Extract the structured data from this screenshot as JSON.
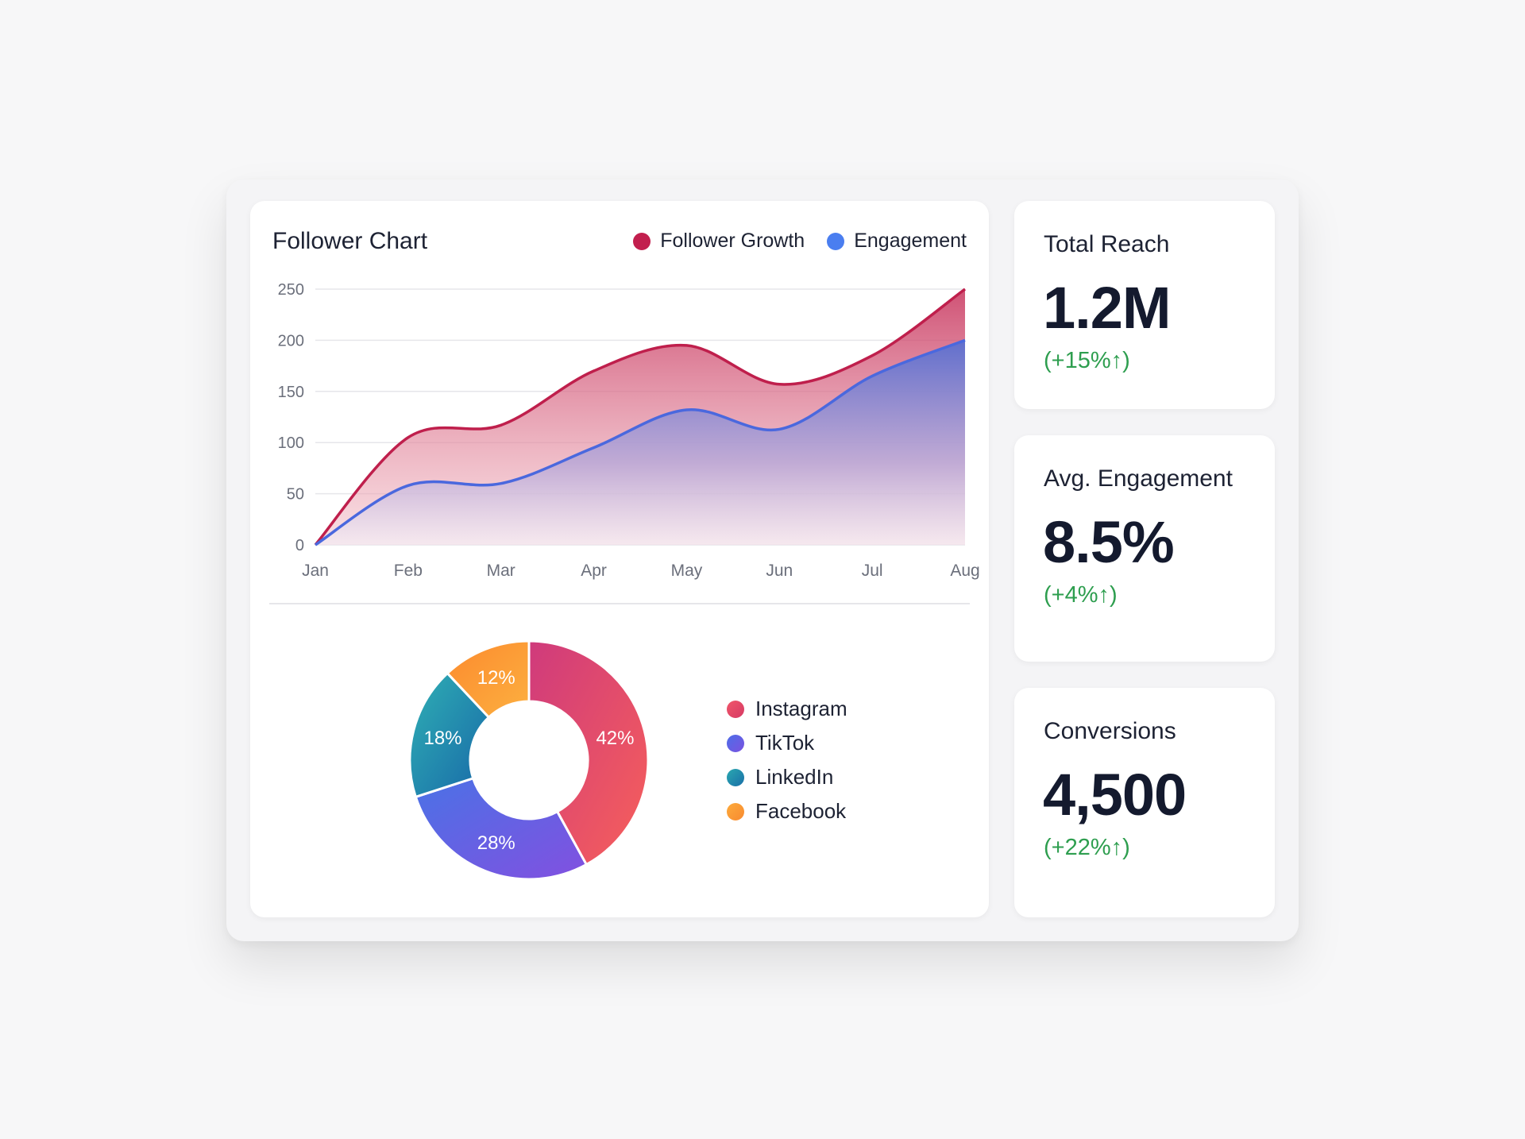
{
  "colors": {
    "follower_growth": "#c21f4e",
    "engagement": "#4a6ee0",
    "positive": "#2e9e4f",
    "instagram": "#e8475f",
    "tiktok": "#6a5cf0",
    "linkedin": "#1f8fa8",
    "facebook": "#fb9a36"
  },
  "chart_data": [
    {
      "type": "area",
      "title": "Follower Chart",
      "categories": [
        "Jan",
        "Feb",
        "Mar",
        "Apr",
        "May",
        "Jun",
        "Jul",
        "Aug"
      ],
      "yticks": [
        "0",
        "50",
        "100",
        "150",
        "200",
        "250"
      ],
      "ylim": [
        0,
        250
      ],
      "grid": true,
      "legend_placement": "top-right",
      "series": [
        {
          "name": "Follower Growth",
          "values": [
            0,
            105,
            117,
            170,
            195,
            157,
            185,
            250
          ]
        },
        {
          "name": "Engagement",
          "values": [
            0,
            58,
            60,
            95,
            132,
            113,
            165,
            200
          ]
        }
      ]
    },
    {
      "type": "pie",
      "donut": true,
      "legend_placement": "right",
      "slices": [
        {
          "name": "Instagram",
          "value": 42,
          "label": "42%"
        },
        {
          "name": "TikTok",
          "value": 28,
          "label": "28%"
        },
        {
          "name": "LinkedIn",
          "value": 18,
          "label": "18%"
        },
        {
          "name": "Facebook",
          "value": 12,
          "label": "12%"
        }
      ]
    }
  ],
  "stats": [
    {
      "label": "Total Reach",
      "value": "1.2M",
      "change": "(+15%↑)"
    },
    {
      "label": "Avg. Engagement",
      "value": "8.5%",
      "change": "(+4%↑)"
    },
    {
      "label": "Conversions",
      "value": "4,500",
      "change": "(+22%↑)"
    }
  ]
}
